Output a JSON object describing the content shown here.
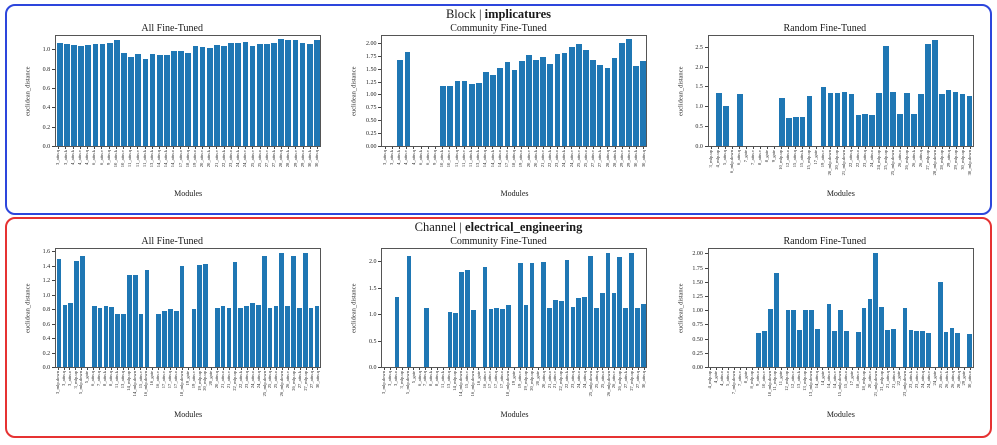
{
  "panels": [
    {
      "title_prefix": "Block | ",
      "title_bold": "implicatures",
      "border_color": "#2d46dc",
      "chart_indexes": [
        0,
        1,
        2
      ]
    },
    {
      "title_prefix": "Channel | ",
      "title_bold": "electrical_engineering",
      "border_color": "#e63232",
      "chart_indexes": [
        3,
        4,
        5
      ]
    }
  ],
  "chart_data": [
    {
      "type": "bar",
      "title": "All Fine-Tuned",
      "xlabel": "Modules",
      "ylabel": "euclidean_distance",
      "bar_color": "#1f77b4",
      "ylim": [
        0,
        1.16
      ],
      "yticks": [
        0,
        0.2,
        0.4,
        0.6,
        0.8,
        1.0
      ],
      "ytick_labels": [
        "0.0",
        "0.2",
        "0.4",
        "0.6",
        "0.8",
        "1.0"
      ],
      "categories": [
        "3_attn.q",
        "3_attn.k",
        "4_attn.k",
        "4_attn.v",
        "4_attn.q",
        "6_attn.k",
        "6_attn.v",
        "9_attn.q",
        "10_attn.k",
        "10_attn.v",
        "11_attn.q",
        "11_attn.v",
        "11_attn.k",
        "13_attn.k",
        "14_attn.q",
        "14_attn.k",
        "14_attn.o",
        "17_attn.o",
        "18_attn.q",
        "19_attn.o",
        "20_attn.v",
        "20_attn.k",
        "21_attn.v",
        "22_attn.k",
        "23_attn.o",
        "24_attn.k",
        "24_attn.v",
        "25_attn.v",
        "25_attn.o",
        "27_attn.v",
        "27_attn.k",
        "28_attn.q",
        "28_attn.k",
        "29_attn.v",
        "29_attn.o",
        "30_attn.k",
        "30_attn.q"
      ],
      "values": [
        1.07,
        1.06,
        1.05,
        1.04,
        1.05,
        1.06,
        1.06,
        1.07,
        1.1,
        0.96,
        0.92,
        0.95,
        0.9,
        0.95,
        0.94,
        0.94,
        0.98,
        0.98,
        0.96,
        1.04,
        1.03,
        1.02,
        1.05,
        1.04,
        1.07,
        1.07,
        1.08,
        1.04,
        1.06,
        1.06,
        1.07,
        1.11,
        1.1,
        1.1,
        1.07,
        1.06,
        1.1
      ]
    },
    {
      "type": "bar",
      "title": "Community Fine-Tuned",
      "xlabel": "Modules",
      "ylabel": "euclidean_distance",
      "bar_color": "#1f77b4",
      "ylim": [
        0,
        2.17
      ],
      "yticks": [
        0,
        0.25,
        0.5,
        0.75,
        1.0,
        1.25,
        1.5,
        1.75,
        2.0
      ],
      "ytick_labels": [
        "0.00",
        "0.25",
        "0.50",
        "0.75",
        "1.00",
        "1.25",
        "1.50",
        "1.75",
        "2.00"
      ],
      "categories": [
        "3_attn.q",
        "3_attn.k",
        "4_attn.k",
        "4_attn.v",
        "4_attn.q",
        "6_attn.k",
        "6_attn.v",
        "9_attn.q",
        "10_attn.k",
        "10_attn.v",
        "11_attn.q",
        "11_attn.v",
        "11_attn.k",
        "13_attn.k",
        "14_attn.q",
        "14_attn.k",
        "14_attn.o",
        "17_attn.o",
        "18_attn.q",
        "19_attn.o",
        "20_attn.v",
        "20_attn.k",
        "21_attn.v",
        "22_attn.k",
        "23_attn.o",
        "24_attn.k",
        "24_attn.v",
        "25_attn.v",
        "25_attn.o",
        "27_attn.v",
        "27_attn.k",
        "28_attn.q",
        "28_attn.k",
        "29_attn.v",
        "29_attn.o",
        "30_attn.k",
        "30_attn.q"
      ],
      "values": [
        0,
        0,
        1.66,
        1.82,
        0,
        0,
        0,
        0,
        1.17,
        1.17,
        1.27,
        1.26,
        1.21,
        1.23,
        1.43,
        1.38,
        1.52,
        1.62,
        1.48,
        1.65,
        1.76,
        1.66,
        1.72,
        1.59,
        1.79,
        1.81,
        1.91,
        1.97,
        1.86,
        1.66,
        1.58,
        1.52,
        1.71,
        1.99,
        2.07,
        1.56,
        1.64
      ]
    },
    {
      "type": "bar",
      "title": "Random Fine-Tuned",
      "xlabel": "Modules",
      "ylabel": "euclidean_distance",
      "bar_color": "#1f77b4",
      "ylim": [
        0,
        2.82
      ],
      "yticks": [
        0,
        0.5,
        1.0,
        1.5,
        2.0,
        2.5
      ],
      "ytick_labels": [
        "0.0",
        "0.5",
        "1.0",
        "1.5",
        "2.0",
        "2.5"
      ],
      "categories": [
        "3_mlp.up",
        "4_mlp.up",
        "5_attn.q",
        "6_mlp.down",
        "6_attn.q",
        "7_gate",
        "7_attn.v",
        "8_attn.v",
        "8_gate",
        "9_gate",
        "10_mlp.up",
        "12_attn.o",
        "15_attn.q",
        "15_attn.k",
        "15_mlp.up",
        "17_gate",
        "19_attn.v",
        "20_mlp.down",
        "20_mlp.up",
        "21_mlp.down",
        "22_attn.q",
        "22_attn.o",
        "23_attn.q",
        "24_attn.o",
        "24_mlp.up",
        "25_mlp.up",
        "25_mlp.down",
        "26_attn.o",
        "26_mlp.up",
        "26_attn.k",
        "26_attn.q",
        "27_mlp.up",
        "28_mlp.down",
        "28_mlp.up",
        "29_attn.q",
        "29_mlp.up",
        "30_mlp.up",
        "30_mlp.down"
      ],
      "values": [
        0,
        1.33,
        1.0,
        0,
        1.32,
        0,
        0,
        0,
        0,
        0,
        1.22,
        0.71,
        0.73,
        0.73,
        1.27,
        0,
        1.49,
        1.34,
        1.33,
        1.35,
        1.31,
        0.78,
        0.8,
        0.79,
        1.34,
        2.52,
        1.36,
        0.8,
        1.34,
        0.8,
        1.32,
        2.57,
        2.68,
        1.31,
        1.41,
        1.36,
        1.3,
        1.27
      ]
    },
    {
      "type": "bar",
      "title": "All Fine-Tuned",
      "xlabel": "Modules",
      "ylabel": "euclidean_distance",
      "bar_color": "#1f77b4",
      "ylim": [
        0,
        1.66
      ],
      "yticks": [
        0,
        0.2,
        0.4,
        0.6,
        0.8,
        1.0,
        1.2,
        1.4,
        1.6
      ],
      "ytick_labels": [
        "0.0",
        "0.2",
        "0.4",
        "0.6",
        "0.8",
        "1.0",
        "1.2",
        "1.4",
        "1.6"
      ],
      "categories": [
        "3_mlp.down",
        "3_attn.q",
        "3_attn.o",
        "3_mlp.up",
        "5_mlp.down",
        "5_gate",
        "6_attn.q",
        "7_attn.q",
        "8_attn.k",
        "8_attn.q",
        "11_attn.k",
        "13_attn.q",
        "14_mlp.up",
        "14_mlp.down",
        "15_attn.v",
        "16_mlp.down",
        "16_gate",
        "16_attn.v",
        "17_attn.v",
        "17_attn.q",
        "17_attn.o",
        "18_mlp.down",
        "19_gate",
        "19_attn.v",
        "19_mlp.up",
        "20_mlp.up",
        "20_gate",
        "20_attn.q",
        "21_attn.o",
        "21_attn.v",
        "22_mlp.up",
        "22_attn.k",
        "23_attn.q",
        "24_attn.o",
        "24_attn.q",
        "25_mlp.down",
        "25_attn.q",
        "25_attn.o",
        "26_mlp.down",
        "26_attn.v",
        "26_mlp.up",
        "27_attn.k",
        "27_mlp.up",
        "27_attn.q",
        "30_attn.q"
      ],
      "values": [
        1.49,
        0.86,
        0.88,
        1.47,
        1.54,
        0,
        0.84,
        0.81,
        0.84,
        0.83,
        0.74,
        0.74,
        1.28,
        1.28,
        0.74,
        1.34,
        0,
        0.74,
        0.77,
        0.8,
        0.78,
        1.4,
        0,
        0.8,
        1.41,
        1.43,
        0,
        0.82,
        0.84,
        0.82,
        1.46,
        0.82,
        0.85,
        0.89,
        0.86,
        1.54,
        0.81,
        0.85,
        1.58,
        0.85,
        1.54,
        0.82,
        1.58,
        0.81,
        0.85
      ]
    },
    {
      "type": "bar",
      "title": "Community Fine-Tuned",
      "xlabel": "Modules",
      "ylabel": "euclidean_distance",
      "bar_color": "#1f77b4",
      "ylim": [
        0,
        2.27
      ],
      "yticks": [
        0,
        0.5,
        1.0,
        1.5,
        2.0
      ],
      "ytick_labels": [
        "0.0",
        "0.5",
        "1.0",
        "1.5",
        "2.0"
      ],
      "categories": [
        "3_mlp.down",
        "3_attn.q",
        "3_attn.o",
        "3_mlp.up",
        "5_mlp.down",
        "5_gate",
        "6_attn.q",
        "7_attn.q",
        "8_attn.k",
        "8_attn.q",
        "11_attn.k",
        "13_attn.q",
        "14_mlp.up",
        "14_mlp.down",
        "15_attn.v",
        "16_mlp.down",
        "16_gate",
        "16_attn.v",
        "17_attn.v",
        "17_attn.q",
        "17_attn.o",
        "18_mlp.down",
        "19_gate",
        "19_attn.v",
        "19_mlp.up",
        "20_mlp.up",
        "20_gate",
        "20_attn.q",
        "21_attn.o",
        "21_attn.v",
        "22_mlp.up",
        "22_attn.k",
        "23_attn.q",
        "24_attn.o",
        "24_attn.q",
        "25_mlp.down",
        "25_attn.q",
        "25_attn.o",
        "26_mlp.down",
        "26_attn.v",
        "26_mlp.up",
        "27_attn.k",
        "27_mlp.up",
        "27_attn.q",
        "30_attn.q"
      ],
      "values": [
        0,
        0,
        1.32,
        0,
        2.11,
        0,
        0,
        1.11,
        0,
        0,
        0,
        1.04,
        1.03,
        1.8,
        1.83,
        1.07,
        0,
        1.9,
        1.09,
        1.12,
        1.1,
        1.17,
        0,
        1.96,
        1.18,
        1.96,
        0,
        1.98,
        1.11,
        1.27,
        1.25,
        2.02,
        1.13,
        1.3,
        1.32,
        2.11,
        1.11,
        1.4,
        2.16,
        1.4,
        2.08,
        1.12,
        2.15,
        1.11,
        1.2
      ]
    },
    {
      "type": "bar",
      "title": "Random Fine-Tuned",
      "xlabel": "Modules",
      "ylabel": "euclidean_distance",
      "bar_color": "#1f77b4",
      "ylim": [
        0,
        2.11
      ],
      "yticks": [
        0,
        0.25,
        0.5,
        0.75,
        1.0,
        1.25,
        1.5,
        1.75,
        2.0
      ],
      "ytick_labels": [
        "0.00",
        "0.25",
        "0.50",
        "0.75",
        "1.00",
        "1.25",
        "1.50",
        "1.75",
        "2.00"
      ],
      "categories": [
        "4_mlp.up",
        "4_gate",
        "4_attn.o",
        "5_attn.o",
        "7_mlp.down",
        "7_attn.v",
        "8_gate",
        "8_mlp.up",
        "9_attn.o",
        "10_attn.v",
        "10_mlp.down",
        "11_mlp.up",
        "11_gate",
        "12_mlp.up",
        "12_attn.v",
        "13_attn.k",
        "13_mlp.up",
        "13_mlp.down",
        "14_attn.q",
        "14_gate",
        "14_attn.o",
        "14_attn.v",
        "15_mlp.down",
        "15_attn.o",
        "17_gate",
        "18_attn.v",
        "18_mlp.up",
        "20_attn.v",
        "21_mlp.down",
        "21_mlp.up",
        "21_attn.q",
        "21_attn.o",
        "22_gate",
        "23_mlp.down",
        "23_attn.k",
        "23_attn.v",
        "24_attn.q",
        "24_attn.v",
        "24_gate",
        "25_attn.v",
        "26_attn.k",
        "26_attn.q",
        "28_attn.q",
        "29_gate",
        "30_attn.o"
      ],
      "values": [
        0,
        0,
        0,
        0,
        0,
        0,
        0,
        0,
        0.6,
        0.63,
        1.02,
        1.65,
        0,
        1.01,
        1.0,
        0.65,
        1.0,
        1.0,
        0.67,
        0,
        1.1,
        0.63,
        1.0,
        0.63,
        0,
        0.62,
        1.04,
        1.19,
        2.01,
        1.05,
        0.65,
        0.67,
        0,
        1.03,
        0.65,
        0.64,
        0.63,
        0.59,
        0,
        1.49,
        0.62,
        0.69,
        0.6,
        0,
        0.58
      ]
    }
  ]
}
